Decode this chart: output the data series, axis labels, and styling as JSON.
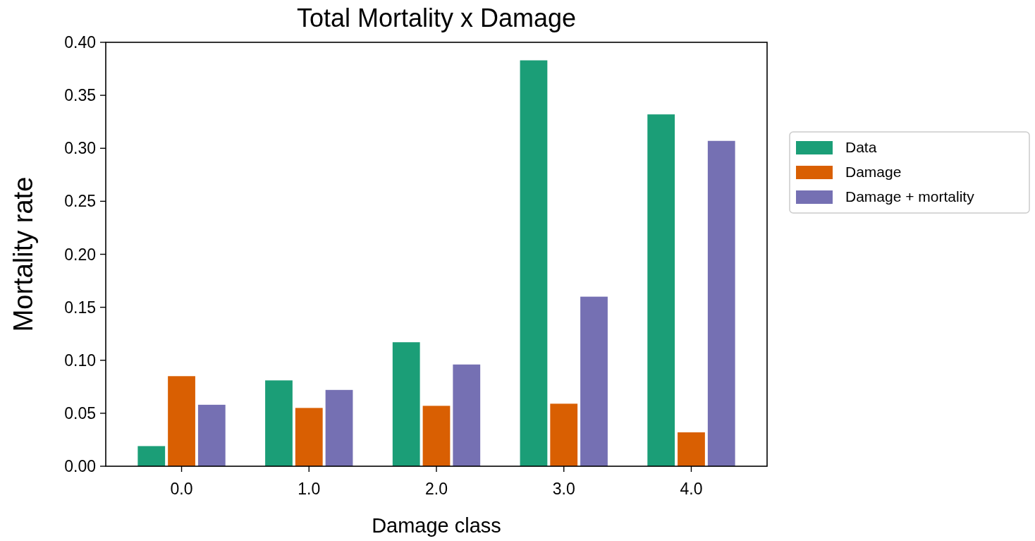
{
  "chart_data": {
    "type": "bar",
    "title": "Total Mortality x Damage",
    "xlabel": "Damage class",
    "ylabel": "Mortality rate",
    "categories": [
      "0.0",
      "1.0",
      "2.0",
      "3.0",
      "4.0"
    ],
    "series": [
      {
        "name": "Data",
        "color": "#1b9e77",
        "values": [
          0.019,
          0.081,
          0.117,
          0.383,
          0.332
        ]
      },
      {
        "name": "Damage",
        "color": "#d95f02",
        "values": [
          0.085,
          0.055,
          0.057,
          0.059,
          0.032
        ]
      },
      {
        "name": "Damage + mortality",
        "color": "#7570b3",
        "values": [
          0.058,
          0.072,
          0.096,
          0.16,
          0.307
        ]
      }
    ],
    "ylim": [
      0,
      0.4
    ],
    "yticks": [
      {
        "value": 0,
        "label": "0.00"
      },
      {
        "value": 0.05,
        "label": "0.05"
      },
      {
        "value": 0.1,
        "label": "0.10"
      },
      {
        "value": 0.15,
        "label": "0.15"
      },
      {
        "value": 0.2,
        "label": "0.20"
      },
      {
        "value": 0.25,
        "label": "0.25"
      },
      {
        "value": 0.3,
        "label": "0.30"
      },
      {
        "value": 0.35,
        "label": "0.35"
      },
      {
        "value": 0.4,
        "label": "0.40"
      }
    ],
    "grid": false,
    "legend": "right"
  }
}
